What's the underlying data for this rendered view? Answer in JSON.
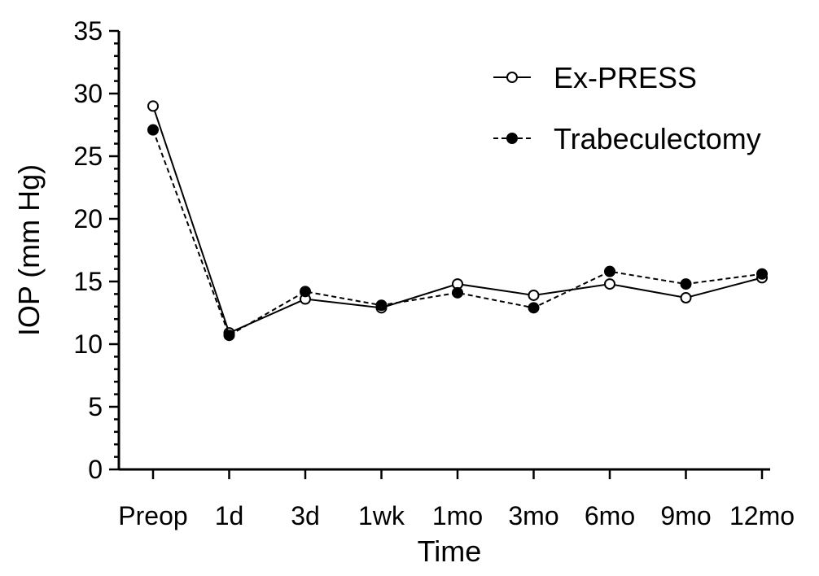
{
  "chart_data": {
    "type": "line",
    "categories": [
      "Preop",
      "1d",
      "3d",
      "1wk",
      "1mo",
      "3mo",
      "6mo",
      "9mo",
      "12mo"
    ],
    "series": [
      {
        "name": "Ex-PRESS",
        "values": [
          29.0,
          10.9,
          13.6,
          12.9,
          14.8,
          13.9,
          14.8,
          13.7,
          15.3
        ],
        "marker": "open-circle",
        "line_style": "solid"
      },
      {
        "name": "Trabeculectomy",
        "values": [
          27.1,
          10.7,
          14.2,
          13.1,
          14.1,
          12.9,
          15.8,
          14.8,
          15.6
        ],
        "marker": "filled-circle",
        "line_style": "dashed"
      }
    ],
    "xlabel": "Time",
    "ylabel": "IOP (mm Hg)",
    "ylim": [
      0,
      35
    ],
    "yticks": [
      0,
      5,
      10,
      15,
      20,
      25,
      30,
      35
    ],
    "grid": false,
    "legend_position": "top-right",
    "colors": {
      "line": "#000000",
      "open_marker_fill": "#ffffff",
      "filled_marker_fill": "#000000"
    }
  }
}
